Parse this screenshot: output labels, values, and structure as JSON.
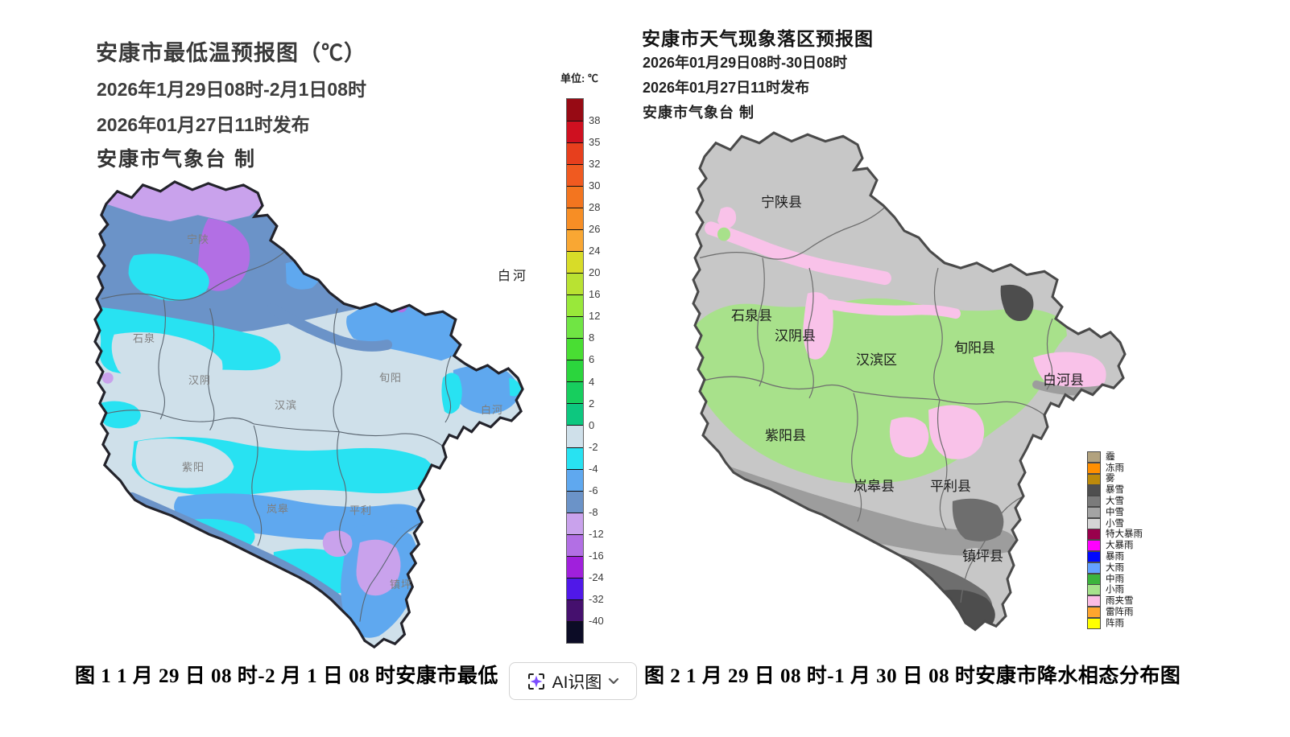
{
  "left_panel": {
    "title": "安康市最低温预报图（℃）",
    "valid_time": "2026年1月29日08时-2月1日08时",
    "issue_time": "2026年01月27日11时发布",
    "producer": "安康市气象台 制",
    "unit_label": "单位: ℃",
    "floating_label": "白河",
    "district_labels": [
      "宁陕",
      "石泉",
      "汉阴",
      "汉滨",
      "旬阳",
      "白河",
      "紫阳",
      "岚皋",
      "平利",
      "镇坪"
    ],
    "caption": "图 1  1 月 29 日 08 时-2 月 1 日 08 时安康市最低",
    "colorbar": {
      "tick_values": [
        "38",
        "35",
        "32",
        "30",
        "28",
        "26",
        "24",
        "20",
        "16",
        "12",
        "8",
        "6",
        "4",
        "2",
        "0",
        "-2",
        "-4",
        "-6",
        "-8",
        "-12",
        "-16",
        "-24",
        "-32",
        "-40"
      ],
      "segment_colors": [
        "#970a14",
        "#cf1020",
        "#e73f1d",
        "#f05a20",
        "#f3751f",
        "#f78e25",
        "#f9a733",
        "#d8dc28",
        "#b9e232",
        "#99e83a",
        "#70e544",
        "#49de33",
        "#2bd53d",
        "#17ce5e",
        "#0dc77f",
        "#cfe0ea",
        "#28e2f2",
        "#5fa8ef",
        "#6b93c8",
        "#c9a2ec",
        "#b26fe4",
        "#a020dc",
        "#5018e8",
        "#45106e",
        "#0c0c26"
      ]
    }
  },
  "right_panel": {
    "title": "安康市天气现象落区预报图",
    "valid_time": "2026年01月29日08时-30日08时",
    "issue_time": "2026年01月27日11时发布",
    "producer": "安康市气象台 制",
    "district_labels": [
      "宁陕县",
      "石泉县",
      "汉阴县",
      "汉滨区",
      "旬阳县",
      "白河县",
      "紫阳县",
      "岚皋县",
      "平利县",
      "镇坪县"
    ],
    "map_colors": {
      "light_snow": "#c7c7c7",
      "mid_snow": "#9d9d9d",
      "heavy_snow": "#6e6e6e",
      "blizzard": "#4d4d4d",
      "light_rain": "#a8e18b",
      "sleet": "#f9c2e9"
    },
    "legend": [
      {
        "label": "霾",
        "color": "#b2a27e"
      },
      {
        "label": "冻雨",
        "color": "#ff8f00"
      },
      {
        "label": "雾",
        "color": "#bd8a0b"
      },
      {
        "label": "暴雪",
        "color": "#4f4f4f"
      },
      {
        "label": "大雪",
        "color": "#7b7b7b"
      },
      {
        "label": "中雪",
        "color": "#a4a4a4"
      },
      {
        "label": "小雪",
        "color": "#d5d5d5"
      },
      {
        "label": "特大暴雨",
        "color": "#99004c"
      },
      {
        "label": "大暴雨",
        "color": "#ff00ff"
      },
      {
        "label": "暴雨",
        "color": "#0008ff"
      },
      {
        "label": "大雨",
        "color": "#64a2ff"
      },
      {
        "label": "中雨",
        "color": "#3cb43c"
      },
      {
        "label": "小雨",
        "color": "#a6e28c"
      },
      {
        "label": "雨夹雪",
        "color": "#fbbce5"
      },
      {
        "label": "雷阵雨",
        "color": "#ffa52e"
      },
      {
        "label": "阵雨",
        "color": "#ffff00"
      }
    ],
    "caption": "图 2 1 月 29 日 08 时-1 月 30 日 08 时安康市降水相态分布图"
  },
  "ai_button": {
    "label": "AI识图",
    "sparkle_color": "#7c4dff"
  }
}
